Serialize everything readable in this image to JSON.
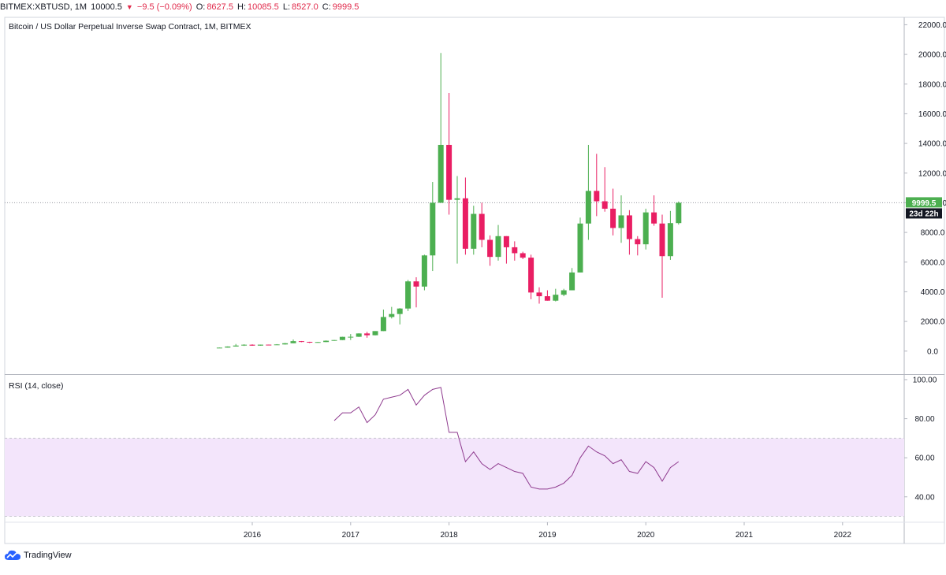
{
  "header": {
    "symbol": "BITMEX:XBTUSD, 1M",
    "last": "10000.5",
    "change": "−9.5 (−0.09%)",
    "open_label": "O:",
    "open": "8627.5",
    "high_label": "H:",
    "high": "10085.5",
    "low_label": "L:",
    "low": "8527.0",
    "close_label": "C:",
    "close": "9999.5",
    "down_arrow": "▼"
  },
  "colors": {
    "up": "#4caf50",
    "down": "#e91e63",
    "rsi_line": "#8e3a8e",
    "rsi_band": "#f3e5fb",
    "grid": "#e0e3eb",
    "axis_text": "#131722"
  },
  "footer": {
    "brand": "TradingView",
    "logo_icon": "tradingview-cloud-icon"
  },
  "chart_data": [
    {
      "type": "candlestick",
      "title": "Bitcoin / US Dollar Perpetual Inverse Swap Contract, 1M, BITMEX",
      "ylim": [
        -1500,
        22500
      ],
      "y_ticks": [
        0,
        2000,
        4000,
        6000,
        8000,
        10000,
        12000,
        14000,
        16000,
        18000,
        20000,
        22000
      ],
      "y_tick_labels": [
        "0.0",
        "2000.0",
        "4000.0",
        "6000.0",
        "8000.0",
        "10000.0",
        "12000.0",
        "14000.0",
        "16000.0",
        "18000.0",
        "20000.0",
        "22000.0"
      ],
      "x_year_labels": [
        "2016",
        "2017",
        "2018",
        "2019",
        "2020",
        "2021",
        "2022"
      ],
      "x_year_starts": [
        "2016-01",
        "2017-01",
        "2018-01",
        "2019-01",
        "2020-01",
        "2021-01",
        "2022-01"
      ],
      "last_price_label": "9999.5",
      "countdown_label": "23d 22h",
      "candles": [
        {
          "t": "2015-09",
          "o": 230,
          "h": 240,
          "l": 225,
          "c": 235
        },
        {
          "t": "2015-10",
          "o": 235,
          "h": 320,
          "l": 235,
          "c": 310
        },
        {
          "t": "2015-11",
          "o": 310,
          "h": 480,
          "l": 310,
          "c": 375
        },
        {
          "t": "2015-12",
          "o": 375,
          "h": 460,
          "l": 350,
          "c": 430
        },
        {
          "t": "2016-01",
          "o": 430,
          "h": 460,
          "l": 360,
          "c": 370
        },
        {
          "t": "2016-02",
          "o": 370,
          "h": 440,
          "l": 365,
          "c": 435
        },
        {
          "t": "2016-03",
          "o": 435,
          "h": 440,
          "l": 400,
          "c": 415
        },
        {
          "t": "2016-04",
          "o": 415,
          "h": 470,
          "l": 410,
          "c": 450
        },
        {
          "t": "2016-05",
          "o": 450,
          "h": 550,
          "l": 440,
          "c": 530
        },
        {
          "t": "2016-06",
          "o": 530,
          "h": 780,
          "l": 530,
          "c": 670
        },
        {
          "t": "2016-07",
          "o": 670,
          "h": 680,
          "l": 600,
          "c": 625
        },
        {
          "t": "2016-08",
          "o": 625,
          "h": 630,
          "l": 540,
          "c": 575
        },
        {
          "t": "2016-09",
          "o": 575,
          "h": 620,
          "l": 570,
          "c": 610
        },
        {
          "t": "2016-10",
          "o": 610,
          "h": 720,
          "l": 605,
          "c": 700
        },
        {
          "t": "2016-11",
          "o": 700,
          "h": 750,
          "l": 690,
          "c": 745
        },
        {
          "t": "2016-12",
          "o": 745,
          "h": 970,
          "l": 740,
          "c": 960
        },
        {
          "t": "2017-01",
          "o": 960,
          "h": 1150,
          "l": 750,
          "c": 965
        },
        {
          "t": "2017-02",
          "o": 965,
          "h": 1200,
          "l": 950,
          "c": 1190
        },
        {
          "t": "2017-03",
          "o": 1190,
          "h": 1300,
          "l": 900,
          "c": 1070
        },
        {
          "t": "2017-04",
          "o": 1070,
          "h": 1350,
          "l": 1060,
          "c": 1350
        },
        {
          "t": "2017-05",
          "o": 1350,
          "h": 2800,
          "l": 1350,
          "c": 2300
        },
        {
          "t": "2017-06",
          "o": 2300,
          "h": 2980,
          "l": 2200,
          "c": 2500
        },
        {
          "t": "2017-07",
          "o": 2500,
          "h": 2900,
          "l": 1800,
          "c": 2870
        },
        {
          "t": "2017-08",
          "o": 2870,
          "h": 4800,
          "l": 2700,
          "c": 4700
        },
        {
          "t": "2017-09",
          "o": 4700,
          "h": 4980,
          "l": 2950,
          "c": 4350
        },
        {
          "t": "2017-10",
          "o": 4350,
          "h": 6500,
          "l": 4100,
          "c": 6450
        },
        {
          "t": "2017-11",
          "o": 6450,
          "h": 11400,
          "l": 5400,
          "c": 10000
        },
        {
          "t": "2017-12",
          "o": 10000,
          "h": 20100,
          "l": 10000,
          "c": 13900
        },
        {
          "t": "2018-01",
          "o": 13900,
          "h": 17400,
          "l": 9200,
          "c": 10200
        },
        {
          "t": "2018-02",
          "o": 10200,
          "h": 11800,
          "l": 5900,
          "c": 10300
        },
        {
          "t": "2018-03",
          "o": 10300,
          "h": 11700,
          "l": 6500,
          "c": 6900
        },
        {
          "t": "2018-04",
          "o": 6900,
          "h": 9800,
          "l": 6500,
          "c": 9250
        },
        {
          "t": "2018-05",
          "o": 9250,
          "h": 10000,
          "l": 7000,
          "c": 7500
        },
        {
          "t": "2018-06",
          "o": 7500,
          "h": 7800,
          "l": 5750,
          "c": 6350
        },
        {
          "t": "2018-07",
          "o": 6350,
          "h": 8500,
          "l": 6100,
          "c": 7750
        },
        {
          "t": "2018-08",
          "o": 7750,
          "h": 7750,
          "l": 5900,
          "c": 7000
        },
        {
          "t": "2018-09",
          "o": 7000,
          "h": 7400,
          "l": 6100,
          "c": 6600
        },
        {
          "t": "2018-10",
          "o": 6600,
          "h": 6700,
          "l": 6200,
          "c": 6300
        },
        {
          "t": "2018-11",
          "o": 6300,
          "h": 6500,
          "l": 3500,
          "c": 3950
        },
        {
          "t": "2018-12",
          "o": 3950,
          "h": 4300,
          "l": 3200,
          "c": 3700
        },
        {
          "t": "2019-01",
          "o": 3700,
          "h": 4100,
          "l": 3400,
          "c": 3400
        },
        {
          "t": "2019-02",
          "o": 3400,
          "h": 4200,
          "l": 3350,
          "c": 3800
        },
        {
          "t": "2019-03",
          "o": 3800,
          "h": 4200,
          "l": 3700,
          "c": 4100
        },
        {
          "t": "2019-04",
          "o": 4100,
          "h": 5600,
          "l": 4100,
          "c": 5300
        },
        {
          "t": "2019-05",
          "o": 5300,
          "h": 9000,
          "l": 5300,
          "c": 8600
        },
        {
          "t": "2019-06",
          "o": 8600,
          "h": 13900,
          "l": 7500,
          "c": 10800
        },
        {
          "t": "2019-07",
          "o": 10800,
          "h": 13300,
          "l": 9100,
          "c": 10100
        },
        {
          "t": "2019-08",
          "o": 10100,
          "h": 12400,
          "l": 9400,
          "c": 9600
        },
        {
          "t": "2019-09",
          "o": 9600,
          "h": 10950,
          "l": 7800,
          "c": 8300
        },
        {
          "t": "2019-10",
          "o": 8300,
          "h": 10500,
          "l": 7300,
          "c": 9150
        },
        {
          "t": "2019-11",
          "o": 9150,
          "h": 9500,
          "l": 6500,
          "c": 7550
        },
        {
          "t": "2019-12",
          "o": 7550,
          "h": 7750,
          "l": 6450,
          "c": 7200
        },
        {
          "t": "2020-01",
          "o": 7200,
          "h": 9600,
          "l": 6850,
          "c": 9350
        },
        {
          "t": "2020-02",
          "o": 9350,
          "h": 10500,
          "l": 8450,
          "c": 8600
        },
        {
          "t": "2020-03",
          "o": 8600,
          "h": 9200,
          "l": 3600,
          "c": 6400
        },
        {
          "t": "2020-04",
          "o": 6400,
          "h": 9450,
          "l": 6150,
          "c": 8630
        },
        {
          "t": "2020-05",
          "o": 8630,
          "h": 10085,
          "l": 8530,
          "c": 10000
        }
      ]
    },
    {
      "type": "line",
      "title": "RSI (14, close)",
      "ylim": [
        27,
        102
      ],
      "y_ticks": [
        40,
        60,
        80,
        100
      ],
      "y_tick_labels": [
        "40.00",
        "60.00",
        "80.00",
        "100.00"
      ],
      "band": [
        30,
        70
      ],
      "series": [
        {
          "name": "RSI",
          "start": "2016-11",
          "values": [
            79,
            83,
            83,
            86,
            78,
            82,
            90,
            91,
            92,
            95,
            87,
            92,
            95,
            96,
            73,
            73,
            58,
            63,
            57,
            54,
            57,
            55,
            53,
            52,
            45,
            44,
            44,
            45,
            47,
            51,
            60,
            66,
            63,
            61,
            57,
            59,
            53,
            52,
            58,
            55,
            48,
            55,
            58
          ]
        }
      ]
    }
  ]
}
